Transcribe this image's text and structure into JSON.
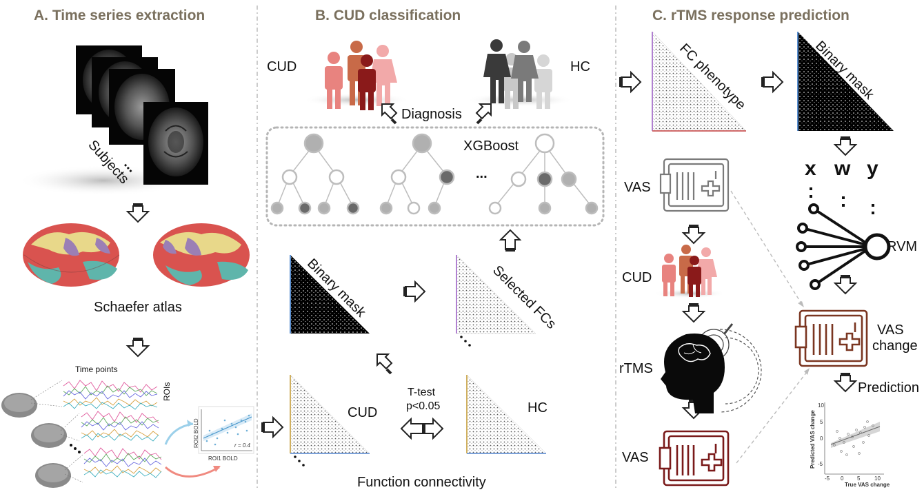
{
  "sections": {
    "a": {
      "title": "A.  Time series extraction",
      "subjects": "Subjects",
      "ellipsis": "...",
      "atlas": "Schaefer atlas",
      "time_points": "Time points",
      "rois": "ROIs",
      "scatter": {
        "xlabel": "ROI1 BOLD",
        "ylabel": "ROI2 BOLD",
        "r": "r = 0.4"
      }
    },
    "b": {
      "title": "B.      CUD classification",
      "cud": "CUD",
      "hc": "HC",
      "diagnosis": "Diagnosis",
      "xgboost": "XGBoost",
      "tree_ellipsis": "...",
      "binary_mask": "Binary mask",
      "selected_fcs": "Selected FCs",
      "matrix_cud": "CUD",
      "matrix_hc": "HC",
      "ttest": "T-test",
      "pvalue": "p<0.05",
      "function_connectivity": "Function connectivity"
    },
    "c": {
      "title": "C.      rTMS response prediction",
      "fc_phenotype": "FC phenotype",
      "binary_mask": "Binary mask",
      "vas": "VAS",
      "cud": "CUD",
      "rtms": "rTMS",
      "vas2": "VAS",
      "x": "x",
      "w": "w",
      "y": "y",
      "rvm": "RVM",
      "vas_change_1": "VAS",
      "vas_change_2": "change",
      "prediction": "Prediction",
      "plot": {
        "xlabel": "True VAS change",
        "ylabel": "Predicted VAS change",
        "xticks": [
          "-5",
          "0",
          "5",
          "10"
        ],
        "yticks": [
          "10",
          "5",
          "0",
          "-5"
        ]
      }
    }
  },
  "colors": {
    "heading": "#7a705e",
    "cud_people": [
      "#e8837f",
      "#c86a48",
      "#f2a9a9",
      "#8a1a1a"
    ],
    "hc_people": [
      "#3a3a3a",
      "#7a7a7a",
      "#c8c8c8",
      "#d6d6d6"
    ],
    "vas_gray": "#7a7a7a",
    "vas_brown": "#7a3520",
    "vas_red": "#7a1a1a",
    "brain_regions": [
      "#d9534f",
      "#e8d88a",
      "#5fb5ab",
      "#9b7fb5",
      "#e07a5f"
    ]
  },
  "icons": [
    "arrow-icon",
    "people-icon",
    "tree-icon",
    "matrix-icon",
    "brain-icon",
    "vas-scale-icon",
    "rvm-network-icon",
    "rtms-head-icon"
  ]
}
